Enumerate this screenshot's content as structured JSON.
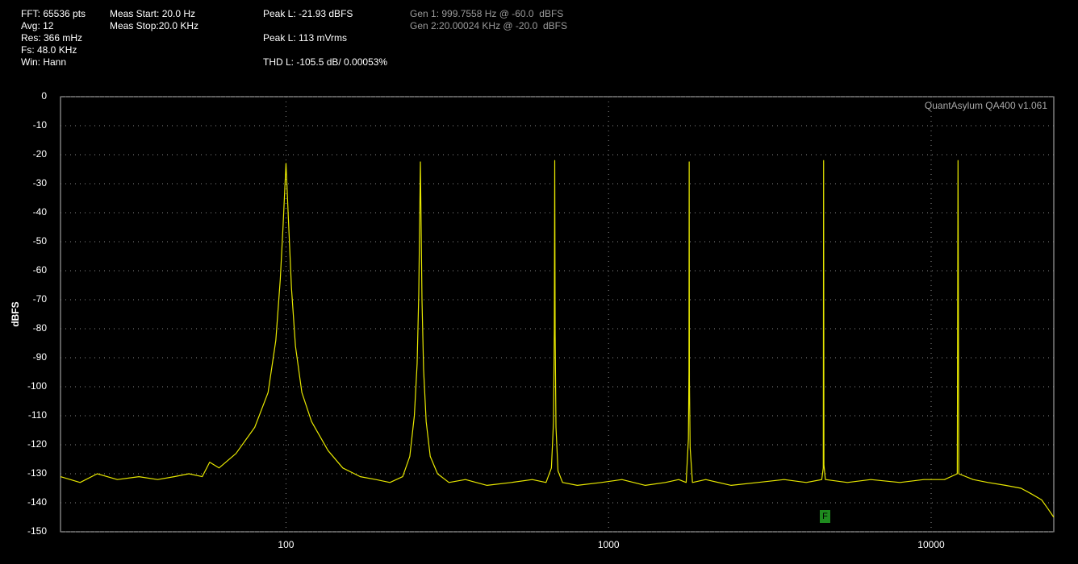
{
  "chart_data": {
    "type": "line",
    "annotations": [
      "FFT: 65536 pts",
      "Avg: 12",
      "Res: 366 mHz",
      "Fs: 48.0 KHz",
      "Win: Hann",
      "Meas Start: 20.0 Hz",
      "Meas Stop:20.0 KHz",
      "Peak L: -21.93 dBFS",
      "Peak L: 113 mVrms",
      "THD L: -105.5 dB/ 0.00053%",
      "Gen 1: 999.7558 Hz @ -60.0  dBFS",
      "Gen 2:20.00024 KHz @ -20.0  dBFS"
    ],
    "watermark": "QuantAsylum QA400 v1.061",
    "marker_label": "F",
    "ylabel": "dBFS",
    "xscale": "log",
    "xlim": [
      20,
      24000
    ],
    "ylim": [
      -150,
      0
    ],
    "xticks": [
      100,
      1000,
      10000
    ],
    "yticks": [
      0,
      -10,
      -20,
      -30,
      -40,
      -50,
      -60,
      -70,
      -80,
      -90,
      -100,
      -110,
      -120,
      -130,
      -140,
      -150
    ],
    "grid": true,
    "color": "#e8e800",
    "x": [
      20,
      23,
      26,
      30,
      35,
      40,
      45,
      50,
      55,
      58,
      62,
      70,
      80,
      88,
      93,
      96,
      98,
      100,
      102,
      104,
      107,
      112,
      120,
      135,
      150,
      170,
      190,
      210,
      230,
      242,
      250,
      255,
      258,
      261,
      264,
      267,
      272,
      280,
      295,
      320,
      360,
      420,
      500,
      580,
      640,
      665,
      675,
      679,
      681,
      683,
      687,
      697,
      720,
      800,
      950,
      1100,
      1300,
      1500,
      1650,
      1740,
      1768,
      1775,
      1778,
      1781,
      1790,
      1820,
      2000,
      2400,
      2900,
      3500,
      4100,
      4580,
      4630,
      4641,
      4652,
      4700,
      5500,
      6500,
      8000,
      9500,
      11000,
      12050,
      12115,
      12180,
      13500,
      15000,
      17000,
      19000,
      20500,
      22000,
      23000,
      24000
    ],
    "values": [
      -131,
      -133,
      -130,
      -132,
      -131,
      -132,
      -131,
      -130,
      -131,
      -126,
      -128,
      -123,
      -114,
      -102,
      -84,
      -63,
      -44,
      -23,
      -45,
      -66,
      -86,
      -102,
      -112,
      -122,
      -128,
      -131,
      -132,
      -133,
      -131,
      -124,
      -110,
      -92,
      -68,
      -22.5,
      -70,
      -94,
      -112,
      -124,
      -130,
      -133,
      -132,
      -134,
      -133,
      -132,
      -133,
      -128,
      -112,
      -80,
      -22,
      -82,
      -114,
      -129,
      -133,
      -134,
      -133,
      -132,
      -134,
      -133,
      -132,
      -133,
      -118,
      -95,
      -22.5,
      -98,
      -121,
      -133,
      -132,
      -134,
      -133,
      -132,
      -133,
      -132,
      -128,
      -22,
      -127,
      -132,
      -133,
      -132,
      -133,
      -132,
      -132,
      -130,
      -22,
      -130,
      -132,
      -133,
      -134,
      -135,
      -137,
      -139,
      -142,
      -145
    ]
  }
}
